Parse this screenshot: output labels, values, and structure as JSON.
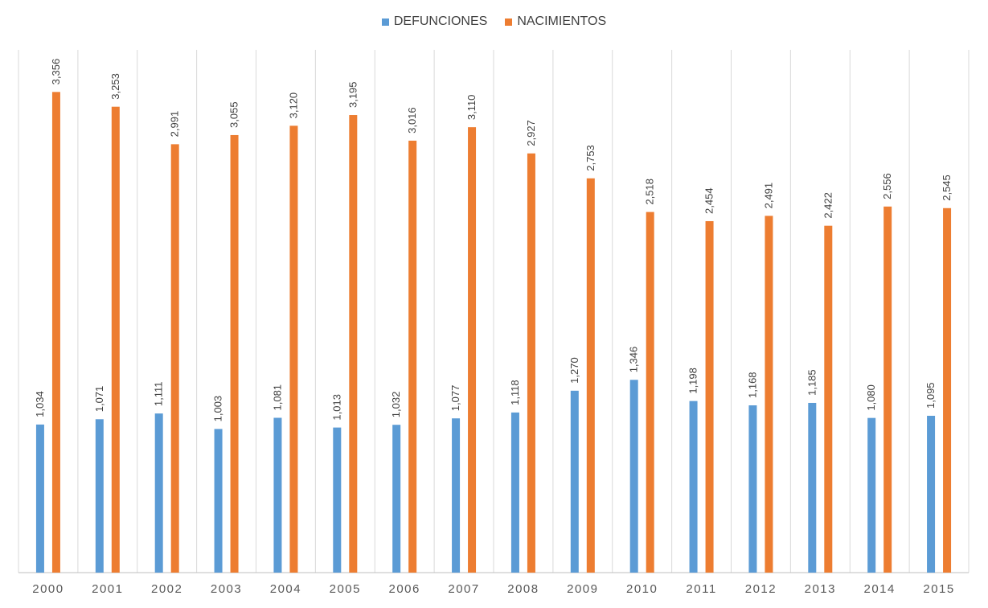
{
  "chart_data": {
    "type": "bar",
    "title": "",
    "xlabel": "",
    "ylabel": "",
    "categories": [
      "2000",
      "2001",
      "2002",
      "2003",
      "2004",
      "2005",
      "2006",
      "2007",
      "2008",
      "2009",
      "2010",
      "2011",
      "2012",
      "2013",
      "2014",
      "2015"
    ],
    "series": [
      {
        "name": "DEFUNCIONES",
        "color": "#5B9BD5",
        "values": [
          1034,
          1071,
          1111,
          1003,
          1081,
          1013,
          1032,
          1077,
          1118,
          1270,
          1346,
          1198,
          1168,
          1185,
          1080,
          1095
        ],
        "labels": [
          "1,034",
          "1,071",
          "1,111",
          "1,003",
          "1,081",
          "1,013",
          "1,032",
          "1,077",
          "1,118",
          "1,270",
          "1,346",
          "1,198",
          "1,168",
          "1,185",
          "1,080",
          "1,095"
        ]
      },
      {
        "name": "NACIMIENTOS",
        "color": "#ED7D31",
        "values": [
          3356,
          3253,
          2991,
          3055,
          3120,
          3195,
          3016,
          3110,
          2927,
          2753,
          2518,
          2454,
          2491,
          2422,
          2556,
          2545
        ],
        "labels": [
          "3,356",
          "3,253",
          "2,991",
          "3,055",
          "3,120",
          "3,195",
          "3,016",
          "3,110",
          "2,927",
          "2,753",
          "2,518",
          "2,454",
          "2,491",
          "2,422",
          "2,556",
          "2,545"
        ]
      }
    ],
    "ylim": [
      0,
      3650
    ],
    "legend_position": "top-center",
    "grid": "vertical category separators"
  }
}
